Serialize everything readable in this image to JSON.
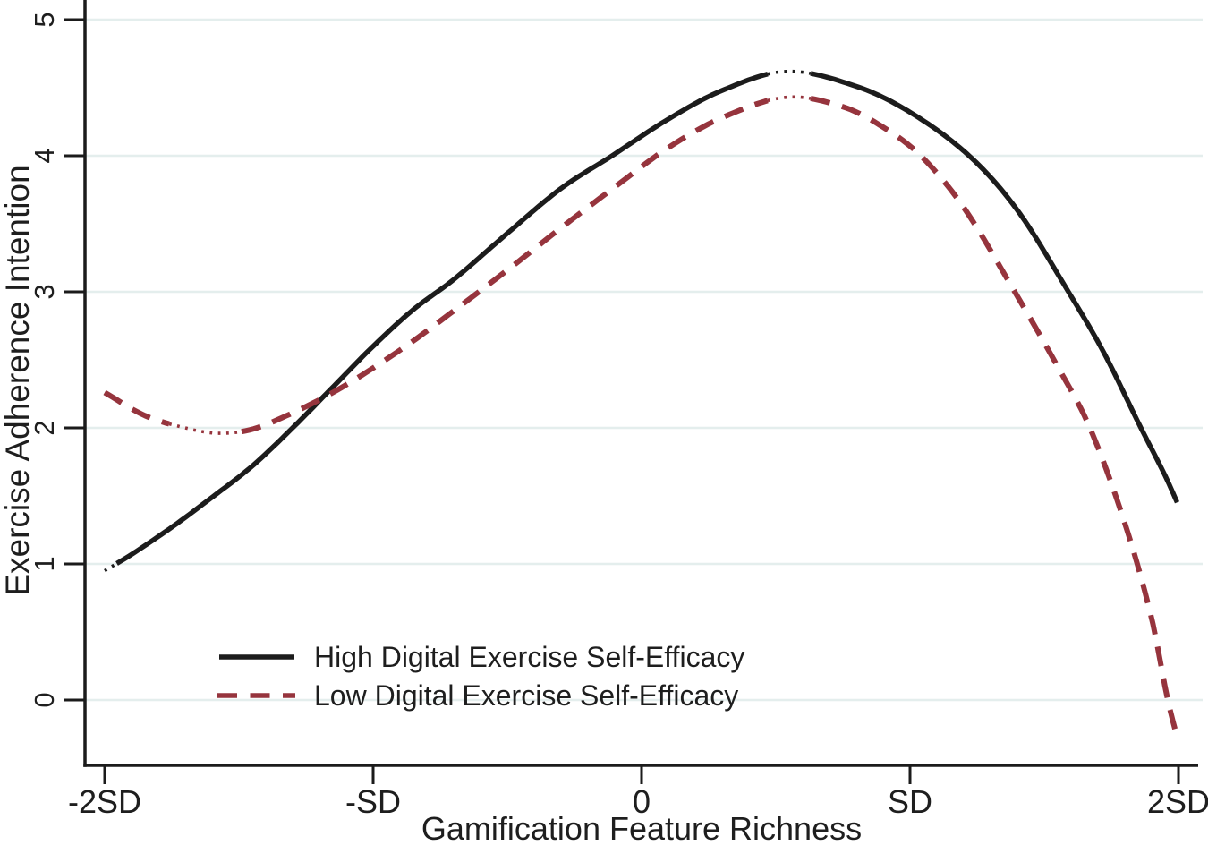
{
  "chart_data": {
    "type": "line",
    "title": "",
    "xlabel": "Gamification Feature Richness",
    "ylabel": "Exercise Adherence Intention",
    "x_tick_labels": [
      "-2SD",
      "-SD",
      "0",
      "SD",
      "2SD"
    ],
    "x_tick_values": [
      -2,
      -1,
      0,
      1,
      2
    ],
    "y_tick_labels": [
      "0",
      "1",
      "2",
      "3",
      "4",
      "5"
    ],
    "y_tick_values": [
      0,
      1,
      2,
      3,
      4,
      5
    ],
    "xlim": [
      -2,
      2
    ],
    "ylim": [
      -0.48,
      5.15
    ],
    "grid": true,
    "gridline_color": "#e4eeed",
    "axis_color": "#1b1b1b",
    "text_color": "#1e1e1e",
    "legend_position": "inside-bottom-left",
    "series": [
      {
        "name": "High Digital Exercise Self-Efficacy",
        "color": "#1c1c1c",
        "line_style": "solid",
        "x": [
          -2.0,
          -1.9,
          -1.75,
          -1.6,
          -1.45,
          -1.3,
          -1.15,
          -1.0,
          -0.85,
          -0.7,
          -0.5,
          -0.3,
          -0.11,
          0.1,
          0.3,
          0.54,
          0.8,
          1.0,
          1.22,
          1.4,
          1.59,
          1.72,
          1.86,
          1.95,
          2.0
        ],
        "y": [
          0.95,
          1.07,
          1.27,
          1.49,
          1.72,
          2.0,
          2.3,
          2.6,
          2.87,
          3.09,
          3.43,
          3.76,
          4.0,
          4.27,
          4.48,
          4.62,
          4.51,
          4.32,
          4.0,
          3.6,
          3.0,
          2.56,
          2.0,
          1.65,
          1.43
        ],
        "peak": {
          "x_sd": 0.54,
          "y": 4.62
        },
        "dotted_ranges": [
          [
            -2.0,
            -1.955
          ],
          [
            0.47,
            0.63
          ]
        ]
      },
      {
        "name": "Low Digital Exercise Self-Efficacy",
        "color": "#96343d",
        "line_style": "dashed",
        "x": [
          -2.0,
          -1.85,
          -1.7,
          -1.58,
          -1.45,
          -1.3,
          -1.15,
          -1.0,
          -0.85,
          -0.7,
          -0.5,
          -0.3,
          -0.1,
          0.1,
          0.3,
          0.54,
          0.75,
          0.9,
          1.04,
          1.2,
          1.39,
          1.55,
          1.67,
          1.8,
          1.9,
          1.96,
          2.0
        ],
        "y": [
          2.26,
          2.09,
          2.0,
          1.96,
          1.99,
          2.11,
          2.26,
          2.44,
          2.64,
          2.86,
          3.16,
          3.47,
          3.77,
          4.06,
          4.28,
          4.43,
          4.36,
          4.21,
          4.0,
          3.62,
          3.0,
          2.45,
          2.0,
          1.3,
          0.6,
          0.0,
          -0.31
        ],
        "peak": {
          "x_sd": 0.54,
          "y": 4.43
        },
        "minimum": {
          "x_sd": -1.58,
          "y": 1.96
        },
        "dotted_ranges": [
          [
            -1.76,
            -1.49
          ],
          [
            0.47,
            0.63
          ]
        ]
      }
    ]
  }
}
